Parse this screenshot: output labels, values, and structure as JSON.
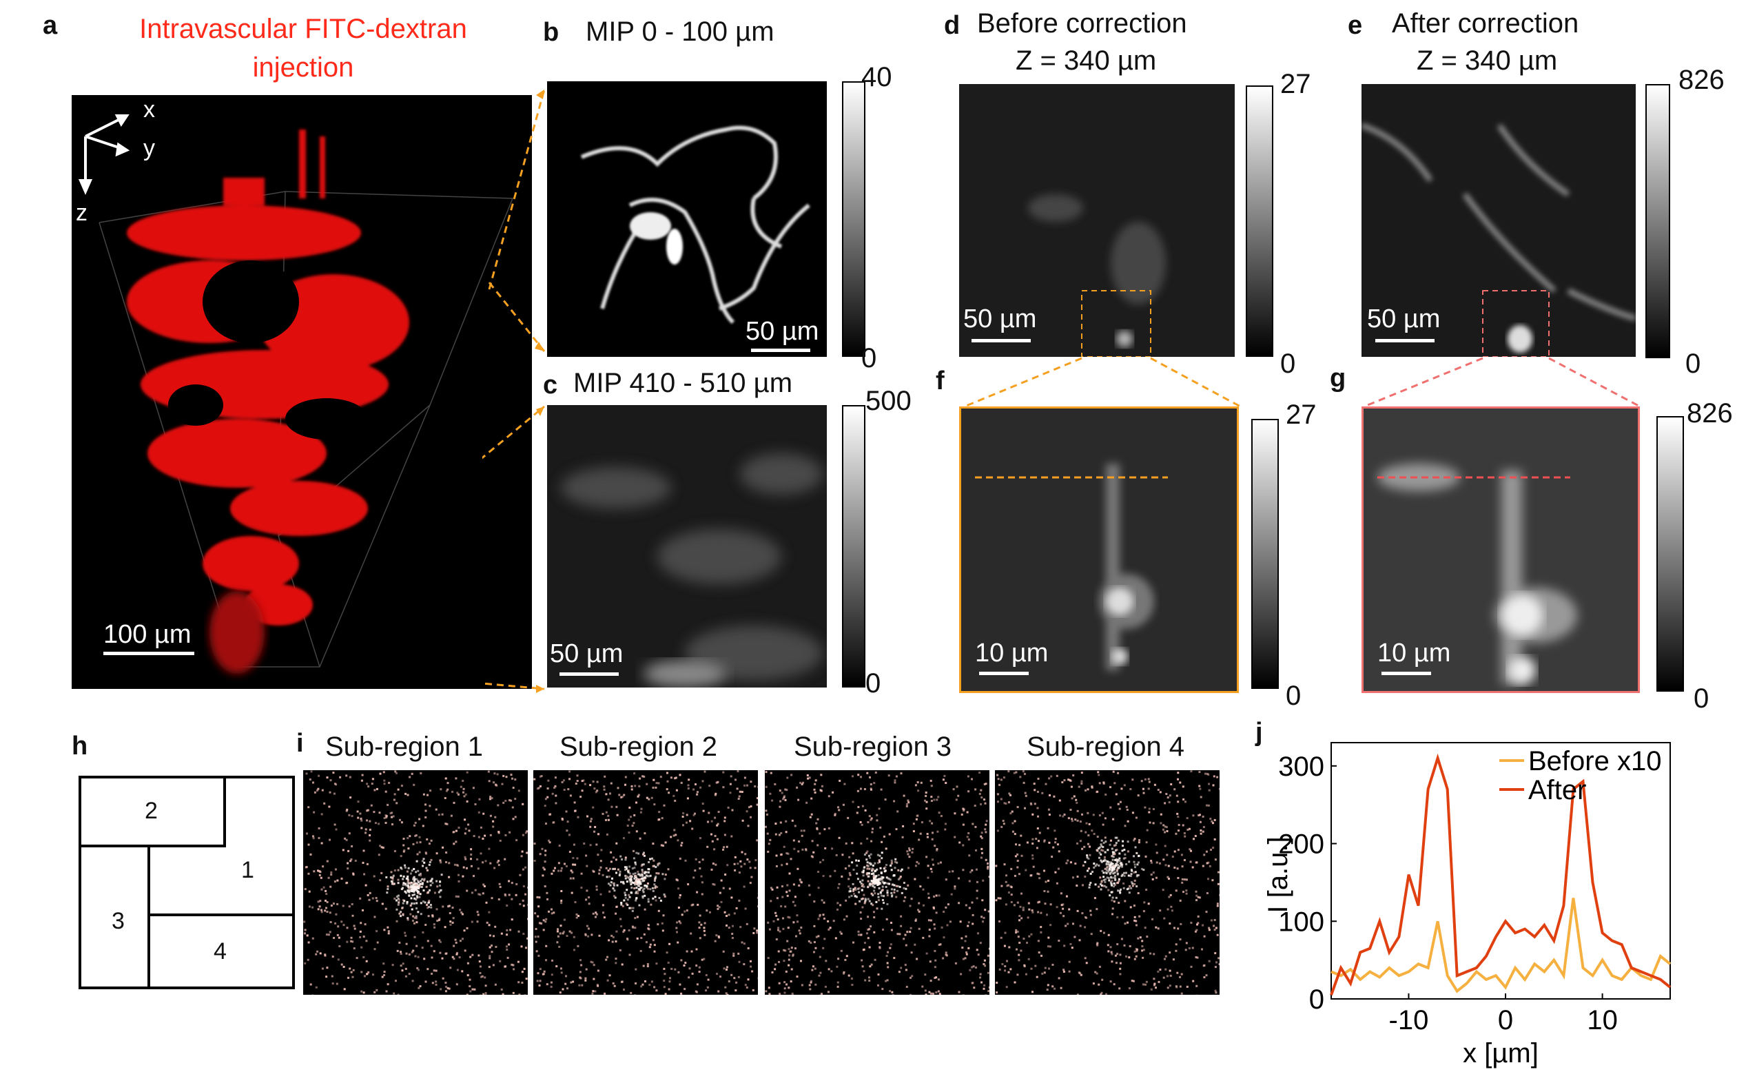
{
  "panels": {
    "a": {
      "letter": "a",
      "title_line1": "Intravascular FITC-dextran",
      "title_line2": "injection",
      "scale": "100 µm",
      "axes": {
        "x": "x",
        "y": "y",
        "z": "z"
      }
    },
    "b": {
      "letter": "b",
      "title": "MIP 0 - 100 µm",
      "scale": "50 µm",
      "cbar_max": "40",
      "cbar_min": "0"
    },
    "c": {
      "letter": "c",
      "title": "MIP 410 - 510 µm",
      "scale": "50 µm",
      "cbar_max": "500",
      "cbar_min": "0"
    },
    "d": {
      "letter": "d",
      "title_line1": "Before correction",
      "title_line2": "Z = 340 µm",
      "scale": "50 µm",
      "cbar_max": "27",
      "cbar_min": "0"
    },
    "e": {
      "letter": "e",
      "title_line1": "After correction",
      "title_line2": "Z = 340 µm",
      "scale": "50 µm",
      "cbar_max": "826",
      "cbar_min": "0"
    },
    "f": {
      "letter": "f",
      "scale": "10 µm",
      "cbar_max": "27",
      "cbar_min": "0"
    },
    "g": {
      "letter": "g",
      "scale": "10 µm",
      "cbar_max": "826",
      "cbar_min": "0"
    },
    "h": {
      "letter": "h",
      "regions": [
        "1",
        "2",
        "3",
        "4"
      ]
    },
    "i": {
      "letter": "i",
      "subregions": [
        "Sub-region 1",
        "Sub-region 2",
        "Sub-region 3",
        "Sub-region 4"
      ]
    },
    "j": {
      "letter": "j"
    }
  },
  "colors": {
    "red": "#ff2a1a",
    "orange": "#f5a020",
    "pink": "#f07070",
    "after_line": "#e04010",
    "before_line": "#f5b040"
  },
  "chart_data": {
    "type": "line",
    "xlabel": "x [µm]",
    "ylabel": "I [a.u.]",
    "xlim": [
      -18,
      17
    ],
    "ylim": [
      0,
      330
    ],
    "xticks": [
      -10,
      0,
      10
    ],
    "yticks": [
      0,
      100,
      200,
      300
    ],
    "legend": "top-right",
    "series": [
      {
        "name": "Before x10",
        "x": [
          -18,
          -17,
          -16,
          -15,
          -14,
          -13,
          -12,
          -11,
          -10,
          -9,
          -8,
          -7,
          -6,
          -5,
          -4,
          -3,
          -2,
          -1,
          0,
          1,
          2,
          3,
          4,
          5,
          6,
          7,
          8,
          9,
          10,
          11,
          12,
          13,
          14,
          15,
          16,
          17
        ],
        "y": [
          35,
          30,
          38,
          25,
          35,
          28,
          40,
          30,
          35,
          45,
          40,
          100,
          30,
          10,
          20,
          35,
          25,
          30,
          15,
          40,
          25,
          45,
          35,
          50,
          30,
          130,
          40,
          30,
          50,
          30,
          25,
          40,
          30,
          25,
          55,
          45
        ]
      },
      {
        "name": "After",
        "x": [
          -18,
          -17,
          -16,
          -15,
          -14,
          -13,
          -12,
          -11,
          -10,
          -9,
          -8,
          -7,
          -6,
          -5,
          -4,
          -3,
          -2,
          -1,
          0,
          1,
          2,
          3,
          4,
          5,
          6,
          7,
          8,
          9,
          10,
          11,
          12,
          13,
          14,
          15,
          16,
          17
        ],
        "y": [
          5,
          40,
          20,
          60,
          65,
          100,
          60,
          80,
          160,
          120,
          270,
          310,
          270,
          30,
          35,
          40,
          55,
          80,
          100,
          85,
          90,
          80,
          95,
          75,
          120,
          270,
          280,
          150,
          85,
          75,
          70,
          40,
          35,
          30,
          25,
          15
        ]
      }
    ]
  }
}
